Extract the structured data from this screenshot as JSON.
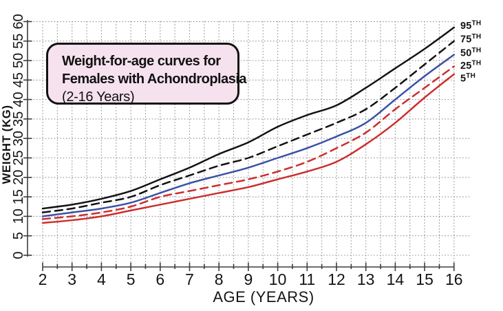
{
  "title_box": {
    "line1": "Weight-for-age curves for",
    "line2": "Females with Achondroplasia",
    "line3": "(2-16 Years)",
    "bg_color": "#f6e2ee",
    "border_color": "#111111"
  },
  "chart_data": {
    "type": "line",
    "title": "Weight-for-age curves for Females with Achondroplasia (2-16 Years)",
    "xlabel": "AGE (YEARS)",
    "ylabel": "WEIGHT (KG)",
    "x": [
      2,
      3,
      4,
      5,
      6,
      7,
      8,
      9,
      10,
      11,
      12,
      13,
      14,
      15,
      16
    ],
    "xlim": [
      2,
      16
    ],
    "ylim": [
      0,
      60
    ],
    "x_tick_step": 1,
    "x_minor_step": 0.5,
    "y_tick_step": 5,
    "grid": true,
    "grid_style": "dotted",
    "legend_position": "right-of-curve-ends",
    "series": [
      {
        "name": "95th",
        "label": "95",
        "label_sup": "TH",
        "color": "#121212",
        "style": "solid",
        "values": [
          12,
          13,
          14.5,
          16.5,
          19.5,
          22.5,
          26,
          29,
          33,
          36,
          38.5,
          43,
          48,
          53,
          58.5
        ]
      },
      {
        "name": "75th",
        "label": "75",
        "label_sup": "TH",
        "color": "#121212",
        "style": "dashed",
        "values": [
          11,
          12,
          13.5,
          15,
          18,
          20.5,
          23,
          25,
          28,
          31,
          34,
          37.5,
          43,
          49,
          55
        ]
      },
      {
        "name": "50th",
        "label": "50",
        "label_sup": "TH",
        "color": "#3a51a5",
        "style": "solid",
        "values": [
          10,
          11,
          12,
          13.5,
          16,
          18.5,
          20.5,
          22.5,
          25,
          27.5,
          30.5,
          34,
          40,
          46,
          51.5
        ]
      },
      {
        "name": "25th",
        "label": "25",
        "label_sup": "TH",
        "color": "#cc2e2e",
        "style": "dashed",
        "values": [
          9.3,
          10,
          11,
          12.5,
          15,
          16.5,
          18,
          19.5,
          21.5,
          24,
          27.5,
          31.5,
          37.5,
          43,
          48.5
        ]
      },
      {
        "name": "5th",
        "label": "5",
        "label_sup": "TH",
        "color": "#cc2e2e",
        "style": "solid",
        "values": [
          8.3,
          9,
          10,
          11.5,
          13,
          14.5,
          16,
          17.5,
          19.5,
          21.5,
          24,
          28.5,
          34,
          40.5,
          46.5
        ]
      }
    ],
    "y_ticks": [
      0,
      5,
      10,
      15,
      20,
      25,
      30,
      35,
      40,
      45,
      50,
      55,
      60
    ],
    "x_ticks": [
      2,
      3,
      4,
      5,
      6,
      7,
      8,
      9,
      10,
      11,
      12,
      13,
      14,
      15,
      16
    ]
  }
}
